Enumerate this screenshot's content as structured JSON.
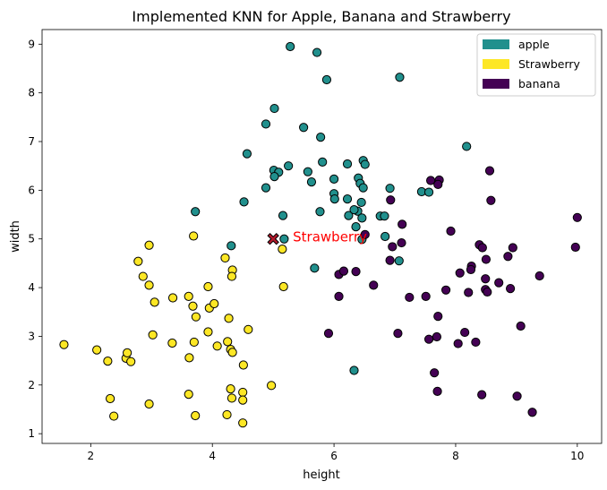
{
  "chart_data": {
    "type": "scatter",
    "title": "Implemented KNN for Apple, Banana and Strawberry",
    "xlabel": "height",
    "ylabel": "width",
    "xlim": [
      1.2,
      10.4
    ],
    "ylim": [
      0.8,
      9.3
    ],
    "xticks": [
      2,
      4,
      6,
      8,
      10
    ],
    "yticks": [
      1,
      2,
      3,
      4,
      5,
      6,
      7,
      8,
      9
    ],
    "grid": false,
    "legend_position": "top-right",
    "legend": [
      {
        "label": "apple",
        "color": "#21908d"
      },
      {
        "label": "Strawberry",
        "color": "#fde725"
      },
      {
        "label": "banana",
        "color": "#440154"
      }
    ],
    "series": [
      {
        "name": "apple",
        "color": "#21908d",
        "points": [
          [
            5.28,
            8.95
          ],
          [
            5.72,
            8.83
          ],
          [
            5.88,
            8.27
          ],
          [
            7.08,
            8.32
          ],
          [
            5.02,
            7.68
          ],
          [
            4.88,
            7.36
          ],
          [
            5.5,
            7.29
          ],
          [
            5.78,
            7.09
          ],
          [
            8.18,
            6.9
          ],
          [
            4.57,
            6.75
          ],
          [
            6.48,
            6.61
          ],
          [
            5.81,
            6.58
          ],
          [
            6.22,
            6.54
          ],
          [
            6.51,
            6.53
          ],
          [
            5.01,
            6.41
          ],
          [
            5.09,
            6.37
          ],
          [
            5.25,
            6.5
          ],
          [
            5.57,
            6.38
          ],
          [
            6.0,
            6.23
          ],
          [
            6.4,
            6.25
          ],
          [
            5.02,
            6.28
          ],
          [
            4.88,
            6.05
          ],
          [
            5.63,
            6.17
          ],
          [
            6.43,
            6.14
          ],
          [
            6.92,
            6.04
          ],
          [
            6.0,
            5.93
          ],
          [
            6.48,
            6.05
          ],
          [
            7.44,
            5.97
          ],
          [
            7.56,
            5.96
          ],
          [
            4.52,
            5.76
          ],
          [
            6.01,
            5.82
          ],
          [
            6.22,
            5.82
          ],
          [
            6.45,
            5.75
          ],
          [
            3.72,
            5.56
          ],
          [
            5.77,
            5.56
          ],
          [
            5.16,
            5.48
          ],
          [
            6.24,
            5.48
          ],
          [
            6.39,
            5.57
          ],
          [
            6.46,
            5.43
          ],
          [
            6.76,
            5.47
          ],
          [
            6.83,
            5.47
          ],
          [
            4.31,
            4.86
          ],
          [
            6.46,
            4.99
          ],
          [
            5.18,
            5.0
          ],
          [
            5.68,
            4.4
          ],
          [
            7.07,
            4.55
          ],
          [
            6.36,
            5.25
          ],
          [
            6.84,
            5.05
          ],
          [
            6.33,
            2.3
          ],
          [
            6.33,
            5.6
          ]
        ]
      },
      {
        "name": "Strawberry",
        "color": "#fde725",
        "points": [
          [
            1.56,
            2.83
          ],
          [
            2.1,
            2.72
          ],
          [
            2.28,
            2.49
          ],
          [
            2.58,
            2.55
          ],
          [
            2.66,
            2.48
          ],
          [
            2.6,
            2.66
          ],
          [
            2.32,
            1.72
          ],
          [
            2.38,
            1.36
          ],
          [
            2.96,
            1.61
          ],
          [
            2.78,
            4.54
          ],
          [
            2.96,
            4.87
          ],
          [
            2.86,
            4.23
          ],
          [
            2.96,
            4.05
          ],
          [
            3.05,
            3.7
          ],
          [
            3.02,
            3.03
          ],
          [
            3.34,
            2.86
          ],
          [
            3.35,
            3.79
          ],
          [
            3.61,
            3.82
          ],
          [
            3.68,
            3.62
          ],
          [
            3.73,
            3.4
          ],
          [
            3.7,
            2.88
          ],
          [
            3.62,
            2.56
          ],
          [
            3.61,
            1.81
          ],
          [
            3.72,
            1.37
          ],
          [
            3.69,
            5.06
          ],
          [
            3.93,
            4.02
          ],
          [
            3.95,
            3.58
          ],
          [
            4.03,
            3.67
          ],
          [
            3.93,
            3.09
          ],
          [
            4.08,
            2.8
          ],
          [
            4.25,
            2.89
          ],
          [
            4.27,
            3.37
          ],
          [
            4.21,
            4.61
          ],
          [
            4.33,
            4.36
          ],
          [
            4.32,
            4.23
          ],
          [
            4.3,
            2.73
          ],
          [
            4.33,
            2.67
          ],
          [
            4.59,
            3.14
          ],
          [
            4.51,
            2.41
          ],
          [
            4.3,
            1.92
          ],
          [
            4.5,
            1.85
          ],
          [
            4.32,
            1.73
          ],
          [
            4.5,
            1.69
          ],
          [
            4.24,
            1.39
          ],
          [
            4.5,
            1.22
          ],
          [
            4.97,
            1.99
          ],
          [
            5.15,
            4.79
          ],
          [
            5.17,
            4.02
          ]
        ]
      },
      {
        "name": "banana",
        "color": "#440154",
        "points": [
          [
            10.0,
            5.44
          ],
          [
            9.97,
            4.83
          ],
          [
            8.56,
            6.4
          ],
          [
            7.59,
            6.2
          ],
          [
            7.73,
            6.21
          ],
          [
            7.71,
            6.12
          ],
          [
            8.58,
            5.79
          ],
          [
            6.93,
            5.8
          ],
          [
            7.12,
            5.3
          ],
          [
            7.92,
            5.16
          ],
          [
            8.39,
            4.88
          ],
          [
            8.94,
            4.82
          ],
          [
            8.44,
            4.82
          ],
          [
            6.96,
            4.84
          ],
          [
            7.11,
            4.92
          ],
          [
            8.86,
            4.64
          ],
          [
            8.26,
            4.44
          ],
          [
            8.25,
            4.37
          ],
          [
            8.07,
            4.3
          ],
          [
            8.5,
            4.58
          ],
          [
            6.08,
            4.27
          ],
          [
            6.16,
            4.34
          ],
          [
            6.36,
            4.33
          ],
          [
            6.51,
            5.09
          ],
          [
            6.92,
            4.56
          ],
          [
            7.24,
            3.8
          ],
          [
            7.51,
            3.82
          ],
          [
            7.84,
            3.95
          ],
          [
            8.21,
            3.9
          ],
          [
            8.49,
            3.96
          ],
          [
            8.52,
            3.91
          ],
          [
            8.49,
            4.18
          ],
          [
            8.71,
            4.1
          ],
          [
            8.9,
            3.98
          ],
          [
            9.38,
            4.24
          ],
          [
            6.08,
            3.82
          ],
          [
            6.65,
            4.05
          ],
          [
            7.71,
            3.41
          ],
          [
            5.91,
            3.06
          ],
          [
            7.05,
            3.06
          ],
          [
            7.56,
            2.94
          ],
          [
            7.69,
            2.99
          ],
          [
            8.04,
            2.85
          ],
          [
            8.15,
            3.08
          ],
          [
            8.33,
            2.88
          ],
          [
            9.07,
            3.21
          ],
          [
            7.65,
            2.25
          ],
          [
            7.7,
            1.87
          ],
          [
            8.43,
            1.8
          ],
          [
            9.01,
            1.77
          ],
          [
            9.26,
            1.44
          ]
        ]
      }
    ],
    "query_point": {
      "x": 5.0,
      "y": 5.0,
      "color": "#b2182b",
      "label": "Strawberry",
      "label_color": "#ff0000"
    }
  }
}
